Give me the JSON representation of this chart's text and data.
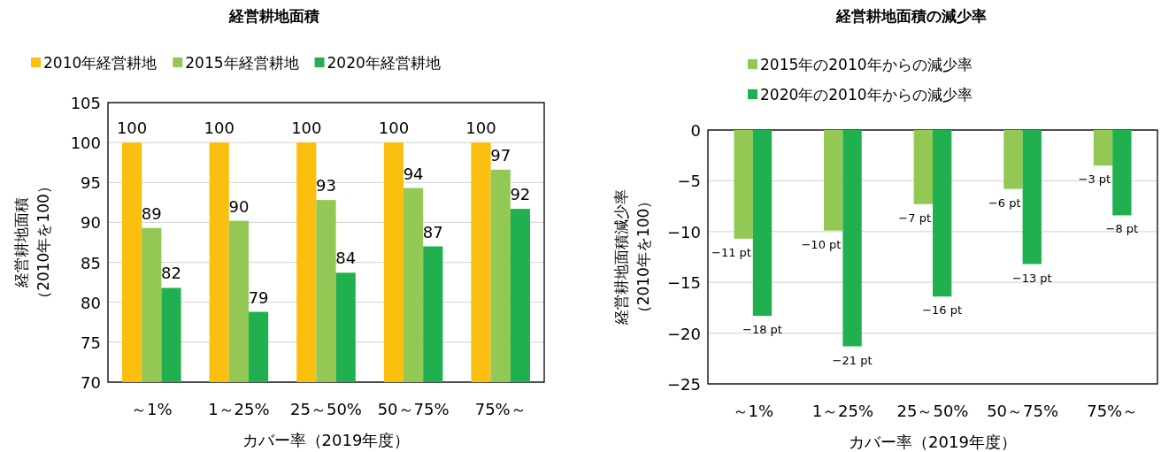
{
  "chart_data": [
    {
      "type": "bar",
      "title": "経営耕地面積",
      "xlabel": "カバー率（2019年度）",
      "ylabel": "経営耕地面積（2010年を100）",
      "categories": [
        "～1%",
        "1～25%",
        "25～50%",
        "50～75%",
        "75%～"
      ],
      "series": [
        {
          "name": "2010年経営耕地",
          "color": "#fbbf0f",
          "values": [
            100,
            100,
            100,
            100,
            100
          ],
          "value_labels": [
            "100",
            "100",
            "100",
            "100",
            "100"
          ]
        },
        {
          "name": "2015年経営耕地",
          "color": "#92c853",
          "values": [
            89.3,
            90.2,
            92.8,
            94.3,
            96.6
          ],
          "value_labels": [
            "89",
            "90",
            "93",
            "94",
            "97"
          ]
        },
        {
          "name": "2020年経営耕地",
          "color": "#21b04f",
          "values": [
            81.8,
            78.8,
            83.7,
            87.0,
            91.7
          ],
          "value_labels": [
            "82",
            "79",
            "84",
            "87",
            "92"
          ]
        }
      ],
      "ylim": [
        70,
        105
      ],
      "yticks": [
        70,
        75,
        80,
        85,
        90,
        95,
        100,
        105
      ],
      "grid": "y",
      "legend": "top"
    },
    {
      "type": "bar",
      "title": "経営耕地面積の減少率",
      "xlabel": "カバー率（2019年度）",
      "ylabel": "経営耕地面積減少率（2010年を100）",
      "categories": [
        "～1%",
        "1～25%",
        "25～50%",
        "50～75%",
        "75%～"
      ],
      "series": [
        {
          "name": "2015年の2010年からの減少率",
          "color": "#92c853",
          "values": [
            -10.7,
            -9.9,
            -7.3,
            -5.8,
            -3.5
          ],
          "value_labels": [
            "−11 pt",
            "−10 pt",
            "−7 pt",
            "−6 pt",
            "−3 pt"
          ]
        },
        {
          "name": "2020年の2010年からの減少率",
          "color": "#21b04f",
          "values": [
            -18.3,
            -21.3,
            -16.4,
            -13.2,
            -8.4
          ],
          "value_labels": [
            "−18 pt",
            "−21 pt",
            "−16 pt",
            "−13 pt",
            "−8 pt"
          ]
        }
      ],
      "ylim": [
        -25,
        0
      ],
      "yticks": [
        0,
        -5,
        -10,
        -15,
        -20,
        -25
      ],
      "grid": "y",
      "legend": "top"
    }
  ]
}
